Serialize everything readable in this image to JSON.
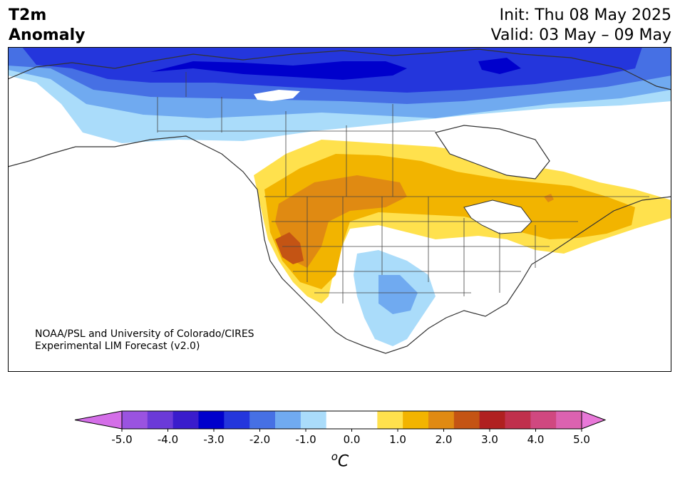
{
  "header": {
    "title_line1": "T2m",
    "title_line2": "Anomaly",
    "init": "Init: Thu 08 May 2025",
    "valid": "Valid: 03 May – 09 May"
  },
  "credit": {
    "line1": "NOAA/PSL and University of Colorado/CIRES",
    "line2": "Experimental LIM Forecast (v2.0)"
  },
  "colorbar": {
    "unit_base": "C",
    "unit_sup": "o",
    "tick_labels": [
      "-5.0",
      "-4.0",
      "-3.0",
      "-2.0",
      "-1.0",
      "0.0",
      "1.0",
      "2.0",
      "3.0",
      "4.0",
      "5.0"
    ],
    "ticks": [
      -5,
      -4,
      -3,
      -2,
      -1,
      0,
      1,
      2,
      3,
      4,
      5
    ],
    "range": [
      -5,
      5
    ],
    "colors": [
      "#9a53e0",
      "#6b3ad8",
      "#3a1ccc",
      "#0000cc",
      "#2436dc",
      "#4670e4",
      "#70aaf0",
      "#aadcfa",
      "#ffffff",
      "#ffffff",
      "#ffe14d",
      "#f2b400",
      "#e08a12",
      "#c45414",
      "#b02020",
      "#c0304c",
      "#d04880",
      "#dc62b0"
    ],
    "under_color": "#d46ee8",
    "over_color": "#e878d8"
  }
}
